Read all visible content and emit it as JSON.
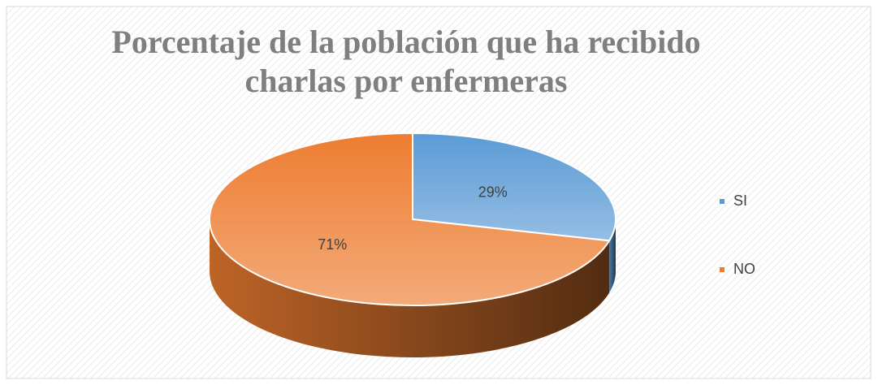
{
  "chart_data": {
    "type": "pie",
    "title": "Porcentaje de la población que ha recibido charlas por enfermeras",
    "categories": [
      "SI",
      "NO"
    ],
    "values": [
      29,
      71
    ],
    "value_labels": [
      "29%",
      "71%"
    ],
    "colors": [
      "#5b9bd5",
      "#ed7d31"
    ],
    "legend": "right"
  }
}
